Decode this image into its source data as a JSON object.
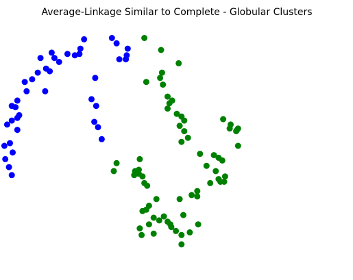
{
  "chart_data": {
    "type": "scatter",
    "title": "Average-Linkage Similar to Complete - Globular Clusters",
    "xlabel": "",
    "ylabel": "",
    "axes_visible": false,
    "grid": false,
    "legend": "none",
    "xlim": [
      -1.2,
      2.2
    ],
    "ylim": [
      -0.65,
      1.15
    ],
    "series": [
      {
        "color": "#0000ff",
        "points": [
          [
            -0.5,
            1.05
          ],
          [
            -0.2,
            1.06
          ],
          [
            -0.15,
            1.02
          ],
          [
            -0.54,
            0.98
          ],
          [
            -0.03,
            0.98
          ],
          [
            -0.85,
            0.95
          ],
          [
            -0.68,
            0.94
          ],
          [
            -0.55,
            0.94
          ],
          [
            -0.04,
            0.93
          ],
          [
            -0.82,
            0.91
          ],
          [
            -0.97,
            0.91
          ],
          [
            -0.77,
            0.88
          ],
          [
            -0.6,
            0.93
          ],
          [
            -0.12,
            0.9
          ],
          [
            -0.05,
            0.9
          ],
          [
            -0.91,
            0.83
          ],
          [
            -1.0,
            0.8
          ],
          [
            -0.87,
            0.81
          ],
          [
            -1.06,
            0.75
          ],
          [
            -1.14,
            0.73
          ],
          [
            -0.38,
            0.76
          ],
          [
            -1.12,
            0.66
          ],
          [
            -0.92,
            0.66
          ],
          [
            -1.22,
            0.59
          ],
          [
            -1.28,
            0.55
          ],
          [
            -0.37,
            0.55
          ],
          [
            -0.42,
            0.6
          ],
          [
            -1.24,
            0.54
          ],
          [
            -1.2,
            0.48
          ],
          [
            -1.22,
            0.46
          ],
          [
            -1.28,
            0.44
          ],
          [
            -0.39,
            0.43
          ],
          [
            -0.35,
            0.39
          ],
          [
            -1.33,
            0.41
          ],
          [
            -1.22,
            0.37
          ],
          [
            -0.31,
            0.3
          ],
          [
            -1.3,
            0.27
          ],
          [
            -1.36,
            0.25
          ],
          [
            -1.27,
            0.2
          ],
          [
            -1.35,
            0.15
          ],
          [
            -1.31,
            0.09
          ],
          [
            -1.28,
            0.03
          ]
        ]
      },
      {
        "color": "#008000",
        "points": [
          [
            0.15,
            1.06
          ],
          [
            0.33,
            0.97
          ],
          [
            0.52,
            0.87
          ],
          [
            0.34,
            0.8
          ],
          [
            0.32,
            0.76
          ],
          [
            0.17,
            0.73
          ],
          [
            0.35,
            0.71
          ],
          [
            0.4,
            0.62
          ],
          [
            0.45,
            0.59
          ],
          [
            0.42,
            0.57
          ],
          [
            0.4,
            0.53
          ],
          [
            0.5,
            0.49
          ],
          [
            0.55,
            0.47
          ],
          [
            0.58,
            0.44
          ],
          [
            0.53,
            0.4
          ],
          [
            0.58,
            0.36
          ],
          [
            0.62,
            0.31
          ],
          [
            0.55,
            0.28
          ],
          [
            0.75,
            0.19
          ],
          [
            0.1,
            0.15
          ],
          [
            -0.15,
            0.12
          ],
          [
            1.0,
            0.45
          ],
          [
            1.08,
            0.41
          ],
          [
            1.07,
            0.38
          ],
          [
            1.16,
            0.38
          ],
          [
            1.15,
            0.37
          ],
          [
            1.14,
            0.36
          ],
          [
            1.16,
            0.25
          ],
          [
            0.9,
            0.18
          ],
          [
            0.95,
            0.16
          ],
          [
            0.99,
            0.14
          ],
          [
            0.09,
            0.07
          ],
          [
            -0.18,
            0.06
          ],
          [
            0.05,
            0.06
          ],
          [
            0.07,
            0.05
          ],
          [
            0.04,
            0.03
          ],
          [
            0.09,
            0.04
          ],
          [
            0.13,
            0.02
          ],
          [
            0.15,
            -0.03
          ],
          [
            0.18,
            -0.05
          ],
          [
            0.82,
            0.1
          ],
          [
            0.92,
            0.06
          ],
          [
            0.95,
            0.0
          ],
          [
            0.97,
            -0.02
          ],
          [
            1.02,
            0.02
          ],
          [
            1.01,
            -0.02
          ],
          [
            0.86,
            -0.03
          ],
          [
            0.72,
            -0.09
          ],
          [
            0.66,
            -0.12
          ],
          [
            0.72,
            -0.13
          ],
          [
            0.53,
            -0.15
          ],
          [
            0.28,
            -0.15
          ],
          [
            0.2,
            -0.2
          ],
          [
            0.17,
            -0.23
          ],
          [
            0.13,
            -0.24
          ],
          [
            0.36,
            -0.28
          ],
          [
            0.31,
            -0.31
          ],
          [
            0.4,
            -0.32
          ],
          [
            0.43,
            -0.34
          ],
          [
            0.44,
            -0.36
          ],
          [
            0.2,
            -0.34
          ],
          [
            0.25,
            -0.29
          ],
          [
            0.57,
            -0.27
          ],
          [
            0.1,
            -0.37
          ],
          [
            0.12,
            -0.42
          ],
          [
            0.49,
            -0.39
          ],
          [
            0.55,
            -0.42
          ],
          [
            0.64,
            -0.4
          ],
          [
            0.73,
            -0.34
          ],
          [
            0.55,
            -0.49
          ],
          [
            0.25,
            -0.41
          ]
        ]
      }
    ]
  }
}
